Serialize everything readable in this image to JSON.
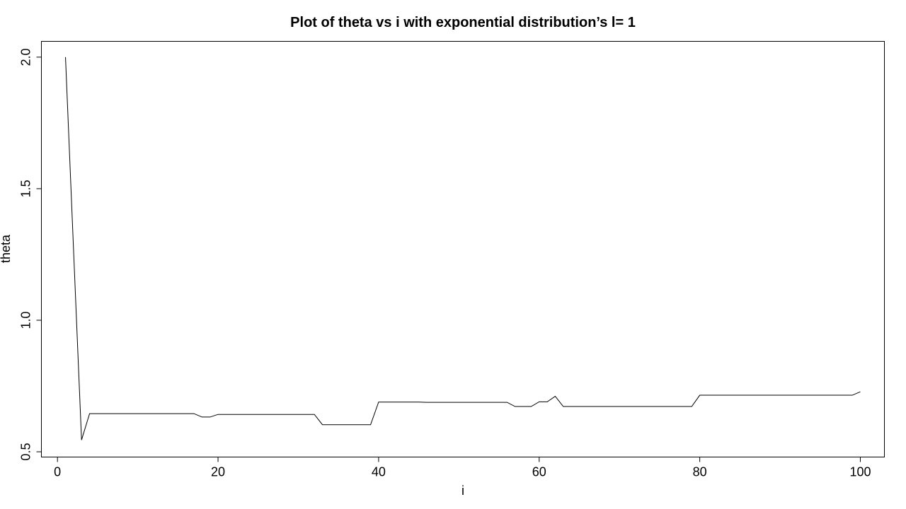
{
  "chart_data": {
    "type": "line",
    "title": "Plot of theta vs i with exponential distribution’s l= 1",
    "xlabel": "i",
    "ylabel": "theta",
    "xlim": [
      -2,
      103
    ],
    "ylim": [
      0.48,
      2.06
    ],
    "xticks": [
      0,
      20,
      40,
      60,
      80,
      100
    ],
    "yticks": [
      0.5,
      1.0,
      1.5,
      2.0
    ],
    "xtick_labels": [
      "0",
      "20",
      "40",
      "60",
      "80",
      "100"
    ],
    "ytick_labels": [
      "0.5",
      "1.0",
      "1.5",
      "2.0"
    ],
    "grid": false,
    "legend": "none",
    "series": [
      {
        "x": [
          1,
          2,
          3,
          4,
          5,
          6,
          7,
          8,
          9,
          10,
          11,
          12,
          13,
          14,
          15,
          16,
          17,
          18,
          19,
          20,
          21,
          22,
          23,
          24,
          25,
          26,
          27,
          28,
          29,
          30,
          31,
          32,
          33,
          34,
          35,
          36,
          37,
          38,
          39,
          40,
          41,
          42,
          43,
          44,
          45,
          46,
          47,
          48,
          49,
          50,
          51,
          52,
          53,
          54,
          55,
          56,
          57,
          58,
          59,
          60,
          61,
          62,
          63,
          64,
          65,
          66,
          67,
          68,
          69,
          70,
          71,
          72,
          73,
          74,
          75,
          76,
          77,
          78,
          79,
          80,
          81,
          82,
          83,
          84,
          85,
          86,
          87,
          88,
          89,
          90,
          91,
          92,
          93,
          94,
          95,
          96,
          97,
          98,
          99,
          100
        ],
        "values": [
          2.0,
          1.27,
          0.545,
          0.645,
          0.645,
          0.645,
          0.645,
          0.645,
          0.645,
          0.645,
          0.645,
          0.645,
          0.645,
          0.645,
          0.645,
          0.645,
          0.645,
          0.632,
          0.632,
          0.642,
          0.642,
          0.642,
          0.642,
          0.642,
          0.642,
          0.642,
          0.642,
          0.642,
          0.642,
          0.642,
          0.642,
          0.642,
          0.603,
          0.603,
          0.603,
          0.603,
          0.603,
          0.603,
          0.603,
          0.689,
          0.689,
          0.689,
          0.689,
          0.689,
          0.689,
          0.688,
          0.688,
          0.688,
          0.688,
          0.688,
          0.688,
          0.688,
          0.688,
          0.688,
          0.688,
          0.688,
          0.672,
          0.672,
          0.672,
          0.69,
          0.69,
          0.711,
          0.672,
          0.672,
          0.672,
          0.672,
          0.672,
          0.672,
          0.672,
          0.672,
          0.672,
          0.672,
          0.672,
          0.672,
          0.672,
          0.672,
          0.672,
          0.672,
          0.672,
          0.715,
          0.715,
          0.715,
          0.715,
          0.715,
          0.715,
          0.715,
          0.715,
          0.715,
          0.715,
          0.715,
          0.715,
          0.715,
          0.715,
          0.715,
          0.715,
          0.715,
          0.715,
          0.715,
          0.715,
          0.728
        ]
      }
    ]
  }
}
